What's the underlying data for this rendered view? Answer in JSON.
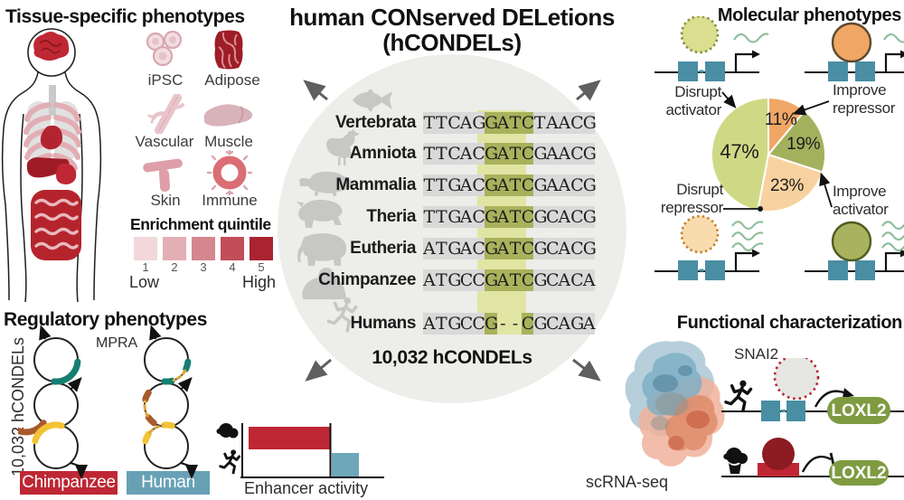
{
  "colors": {
    "accent_red": "#BE2733",
    "steel_blue": "#68A1B6",
    "square_blue": "#4A8EA3",
    "loxl2_green": "#7E9B41",
    "core_highlight": "#A8B25B",
    "band_green": "#E1E5A3",
    "seq_gray": "#D9D9D9",
    "circle_bg": "#EDEDEA",
    "silhouette_gray": "#C7C7C5",
    "teal_arc": "#157F72",
    "brown_arc": "#A85A2D",
    "yellow_arc": "#F2C335",
    "dark_red": "#8C1B22",
    "wavy_green": "#8FBF9C"
  },
  "tissue": {
    "title": "Tissue-specific phenotypes",
    "icons": [
      {
        "id": "ipsc",
        "label": "iPSC"
      },
      {
        "id": "adipose",
        "label": "Adipose"
      },
      {
        "id": "vascular",
        "label": "Vascular"
      },
      {
        "id": "muscle",
        "label": "Muscle"
      },
      {
        "id": "skin",
        "label": "Skin"
      },
      {
        "id": "immune",
        "label": "Immune"
      }
    ],
    "quintile": {
      "title": "Enrichment quintile",
      "numbers": [
        "1",
        "2",
        "3",
        "4",
        "5"
      ],
      "low": "Low",
      "high": "High",
      "colors": [
        "#F2D8DA",
        "#E3AFB4",
        "#D5868E",
        "#C24E59",
        "#A92331"
      ]
    }
  },
  "center": {
    "title_line1": "human CONserved DELetions",
    "title_line2": "(hCONDELs)",
    "count": "10,032 hCONDELs",
    "rows": [
      {
        "taxon": "Vertebrata",
        "animal": "fish",
        "segments": [
          [
            "plain",
            "TTCAG"
          ],
          [
            "core",
            "GATC"
          ],
          [
            "plain",
            "TAACG"
          ]
        ]
      },
      {
        "taxon": "Amniota",
        "animal": "chicken",
        "segments": [
          [
            "plain",
            "TTCAC"
          ],
          [
            "core",
            "GATC"
          ],
          [
            "plain",
            "GAACG"
          ]
        ]
      },
      {
        "taxon": "Mammalia",
        "animal": "platypus",
        "segments": [
          [
            "plain",
            "TTGAC"
          ],
          [
            "core",
            "GATC"
          ],
          [
            "plain",
            "GAACG"
          ]
        ]
      },
      {
        "taxon": "Theria",
        "animal": "theria-beast",
        "segments": [
          [
            "plain",
            "TTGAC"
          ],
          [
            "core",
            "GATC"
          ],
          [
            "plain",
            "GCACG"
          ]
        ]
      },
      {
        "taxon": "Eutheria",
        "animal": "elephant",
        "segments": [
          [
            "plain",
            "ATGAC"
          ],
          [
            "core",
            "GATC"
          ],
          [
            "plain",
            "GCACG"
          ]
        ]
      },
      {
        "taxon": "Chimpanzee",
        "animal": "chimpanzee",
        "segments": [
          [
            "plain",
            "ATGCC"
          ],
          [
            "core",
            "GATC"
          ],
          [
            "plain",
            "GCACA"
          ]
        ]
      },
      {
        "taxon": "Humans",
        "animal": "running-human",
        "segments": [
          [
            "plain",
            "ATGCC"
          ],
          [
            "core",
            "G"
          ],
          [
            "gap",
            "--"
          ],
          [
            "core",
            "C"
          ],
          [
            "plain",
            "GCAGA"
          ]
        ]
      }
    ]
  },
  "molecular": {
    "title": "Molecular phenotypes",
    "callouts": {
      "disrupt_activator": "Disrupt\nactivator",
      "improve_repressor": "Improve\nrepressor",
      "disrupt_repressor": "Disrupt\nrepressor",
      "improve_activator": "Improve\nactivator"
    },
    "pie": {
      "slices": [
        {
          "label": "11%",
          "value": 11,
          "color": "#F0A765",
          "meaning": "Improve repressor"
        },
        {
          "label": "19%",
          "value": 19,
          "color": "#A3B15D",
          "meaning": "Improve activator"
        },
        {
          "label": "23%",
          "value": 23,
          "color": "#F7D2A0",
          "meaning": "Disrupt repressor"
        },
        {
          "label": "47%",
          "value": 47,
          "color": "#CFD985",
          "meaning": "Disrupt activator"
        }
      ]
    }
  },
  "regulatory": {
    "title": "Regulatory phenotypes",
    "side_label": "10,032 hCONDELs",
    "mpra": "MPRA",
    "chimpanzee": "Chimpanzee",
    "human": "Human"
  },
  "enhancer": {
    "label": "Enhancer activity"
  },
  "functional": {
    "title": "Functional characterization",
    "snai2": "SNAI2",
    "loxl2_top": "LOXL2",
    "loxl2_bottom": "LOXL2",
    "scrna": "scRNA-seq"
  },
  "chart_data": [
    {
      "type": "pie",
      "title": "Molecular phenotypes",
      "labels": [
        "Improve repressor",
        "Improve activator",
        "Disrupt repressor",
        "Disrupt activator"
      ],
      "values": [
        11,
        19,
        23,
        47
      ],
      "unit": "%",
      "colors": [
        "#F0A765",
        "#A3B15D",
        "#F7D2A0",
        "#CFD985"
      ],
      "legend_position": "callout labels around pie"
    },
    {
      "type": "bar",
      "title": "Enhancer activity",
      "categories": [
        "Chimpanzee",
        "Human"
      ],
      "values": [
        1.0,
        0.33
      ],
      "unit": "relative (no numeric axis shown)",
      "colors": [
        "#BE2733",
        "#6FA7BA"
      ],
      "xlabel": "Enhancer activity",
      "ylabel": ""
    }
  ]
}
